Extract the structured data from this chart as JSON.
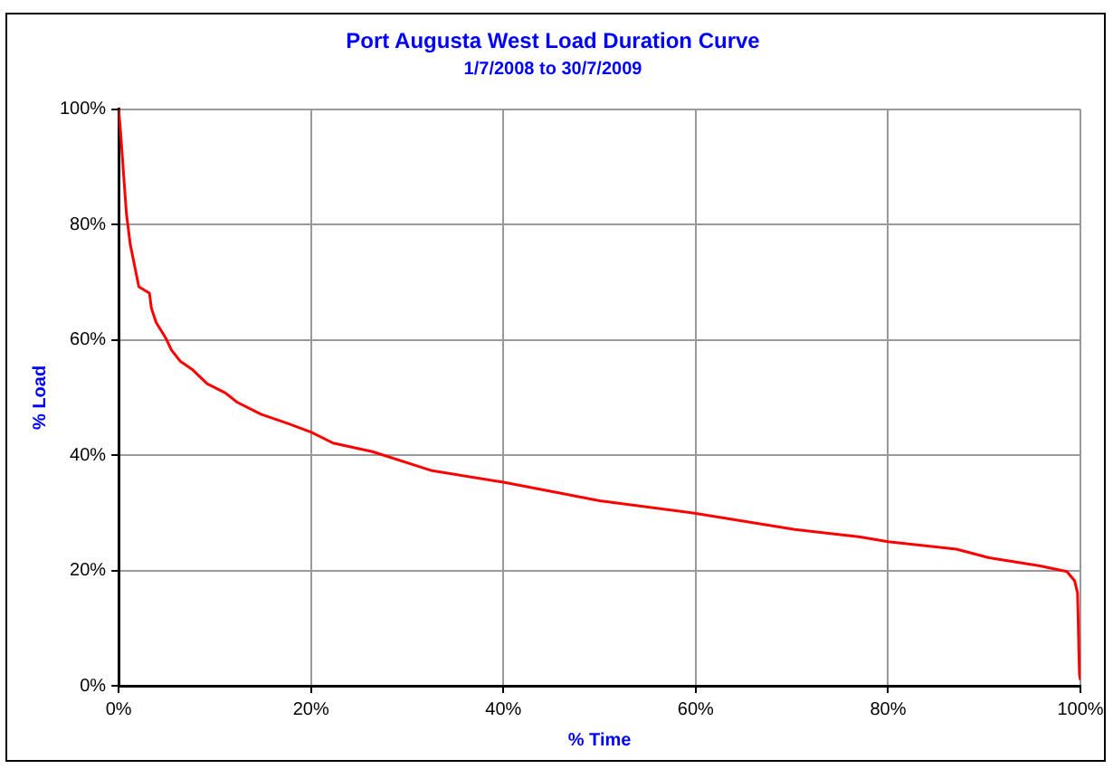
{
  "chart_data": {
    "type": "line",
    "title": "Port Augusta West Load Duration Curve",
    "subtitle": "1/7/2008 to 30/7/2009",
    "xlabel": "% Time",
    "ylabel": "% Load",
    "x": [
      0,
      0.2,
      0.8,
      1.2,
      2.1,
      3.2,
      3.4,
      3.9,
      4.9,
      5.5,
      6.4,
      7.7,
      9.2,
      11.1,
      12.3,
      14.8,
      17.6,
      20,
      22.3,
      26.4,
      32.6,
      40,
      46,
      50,
      60,
      70.3,
      77.1,
      80,
      87.1,
      90.5,
      95.8,
      98.6,
      99.4,
      99.7,
      99.9,
      100
    ],
    "series": [
      {
        "color": "#ff0000",
        "values": [
          100,
          96,
          82,
          76.6,
          69.2,
          68.1,
          65.5,
          63,
          60.3,
          58.2,
          56.3,
          54.8,
          52.4,
          50.8,
          49.2,
          47.1,
          45.5,
          44,
          42.1,
          40.6,
          37.3,
          35.3,
          33.4,
          32.1,
          29.9,
          27.1,
          25.8,
          25,
          23.7,
          22.2,
          20.8,
          19.8,
          18.2,
          16.1,
          1.9,
          1
        ]
      }
    ],
    "xlim": [
      0,
      100
    ],
    "ylim": [
      0,
      100
    ],
    "xticks": [
      {
        "value": 0,
        "label": "0%"
      },
      {
        "value": 20,
        "label": "20%"
      },
      {
        "value": 40,
        "label": "40%"
      },
      {
        "value": 60,
        "label": "60%"
      },
      {
        "value": 80,
        "label": "80%"
      },
      {
        "value": 100,
        "label": "100%"
      }
    ],
    "yticks": [
      {
        "value": 0,
        "label": "0%"
      },
      {
        "value": 20,
        "label": "20%"
      },
      {
        "value": 40,
        "label": "40%"
      },
      {
        "value": 60,
        "label": "60%"
      },
      {
        "value": 80,
        "label": "80%"
      },
      {
        "value": 100,
        "label": "100%"
      }
    ],
    "grid": true,
    "legend": false,
    "marker": "none",
    "line_style": "solid"
  }
}
